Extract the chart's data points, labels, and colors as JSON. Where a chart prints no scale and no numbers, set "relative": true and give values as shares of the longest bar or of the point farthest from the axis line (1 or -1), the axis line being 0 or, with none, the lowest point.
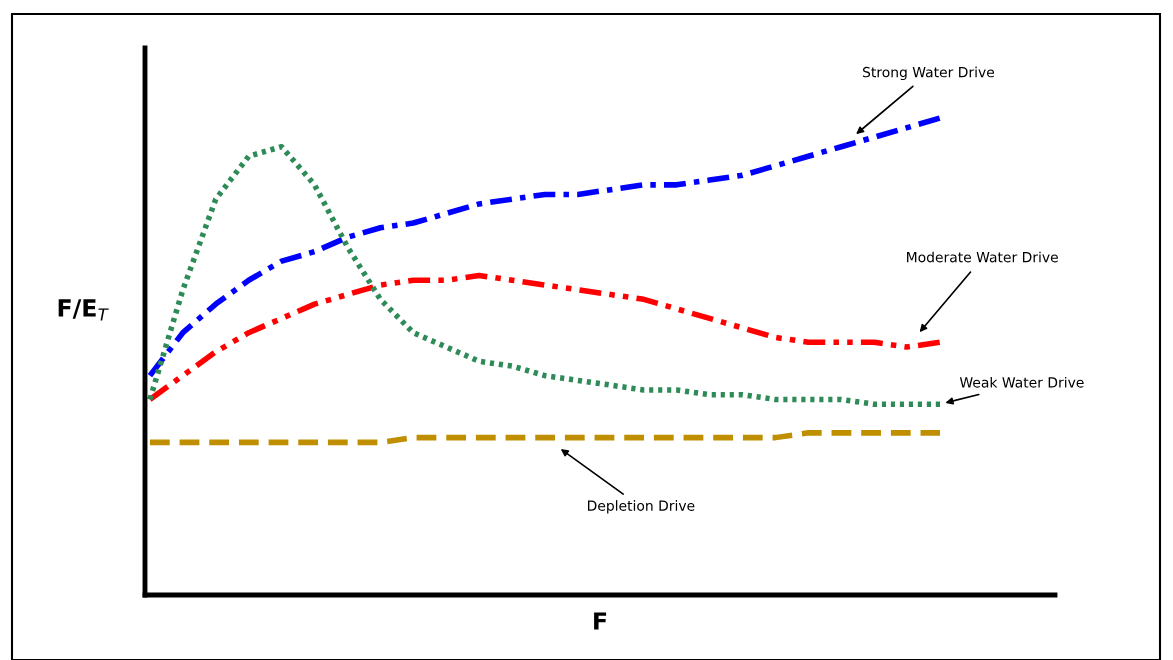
{
  "chart_data": {
    "type": "line",
    "relative": true,
    "xlabel": "F",
    "ylabel": "F/E$_{T}$",
    "legend": false,
    "categories": [
      null,
      null,
      null,
      null,
      null,
      null,
      null,
      null,
      null,
      null,
      null,
      null,
      null,
      null,
      null,
      null,
      null,
      null,
      null,
      null,
      null,
      null,
      null,
      null,
      null
    ],
    "series": [
      {
        "name": "Strong Water Drive",
        "color": "#0000ff",
        "line_style": "dashdot",
        "values": [
          0.46,
          0.55,
          0.61,
          0.66,
          0.7,
          0.72,
          0.75,
          0.77,
          0.78,
          0.8,
          0.82,
          0.83,
          0.84,
          0.84,
          0.85,
          0.86,
          0.86,
          0.87,
          0.88,
          0.9,
          0.92,
          0.94,
          0.96,
          0.98,
          1.0
        ]
      },
      {
        "name": "Moderate Water Drive",
        "color": "#ff0000",
        "line_style": "dashdotdot",
        "values": [
          0.41,
          0.46,
          0.51,
          0.55,
          0.58,
          0.61,
          0.63,
          0.65,
          0.66,
          0.66,
          0.67,
          0.66,
          0.65,
          0.64,
          0.63,
          0.62,
          0.6,
          0.58,
          0.56,
          0.54,
          0.53,
          0.53,
          0.53,
          0.52,
          0.53
        ]
      },
      {
        "name": "Weak Water Drive",
        "color": "#2e8b57",
        "line_style": "dotted",
        "values": [
          0.41,
          0.64,
          0.83,
          0.92,
          0.94,
          0.86,
          0.73,
          0.62,
          0.55,
          0.52,
          0.49,
          0.48,
          0.46,
          0.45,
          0.44,
          0.43,
          0.43,
          0.42,
          0.42,
          0.41,
          0.41,
          0.41,
          0.4,
          0.4,
          0.4
        ]
      },
      {
        "name": "Depletion Drive",
        "color": "#bf8f00",
        "line_style": "dashed",
        "values": [
          0.32,
          0.32,
          0.32,
          0.32,
          0.32,
          0.32,
          0.32,
          0.32,
          0.33,
          0.33,
          0.33,
          0.33,
          0.33,
          0.33,
          0.33,
          0.33,
          0.33,
          0.33,
          0.33,
          0.33,
          0.34,
          0.34,
          0.34,
          0.34,
          0.34
        ]
      }
    ]
  }
}
